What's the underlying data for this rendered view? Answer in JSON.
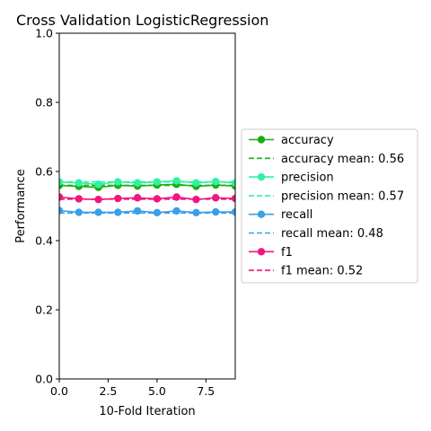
{
  "chart_data": {
    "type": "line",
    "title": "Cross Validation LogisticRegression",
    "xlabel": "10-Fold Iteration",
    "ylabel": "Performance",
    "xlim": [
      0,
      9
    ],
    "ylim": [
      0,
      1
    ],
    "x": [
      0,
      1,
      2,
      3,
      4,
      5,
      6,
      7,
      8,
      9
    ],
    "x_ticks": [
      0.0,
      2.5,
      5.0,
      7.5
    ],
    "x_tick_labels": [
      "0.0",
      "2.5",
      "5.0",
      "7.5"
    ],
    "y_ticks": [
      0.0,
      0.2,
      0.4,
      0.6,
      0.8,
      1.0
    ],
    "y_tick_labels": [
      "0.0",
      "0.2",
      "0.4",
      "0.6",
      "0.8",
      "1.0"
    ],
    "grid": false,
    "legend_position": "right",
    "series": [
      {
        "name": "accuracy",
        "color": "#1aaf10",
        "style": "line-marker",
        "values": [
          0.56,
          0.557,
          0.554,
          0.56,
          0.558,
          0.561,
          0.563,
          0.557,
          0.561,
          0.558
        ]
      },
      {
        "name": "accuracy mean: 0.56",
        "color": "#1aaf10",
        "style": "dashed",
        "mean": 0.56
      },
      {
        "name": "precision",
        "color": "#2ef2a5",
        "style": "line-marker",
        "values": [
          0.57,
          0.567,
          0.563,
          0.57,
          0.567,
          0.57,
          0.573,
          0.567,
          0.571,
          0.567
        ]
      },
      {
        "name": "precision mean: 0.57",
        "color": "#2ef2a5",
        "style": "dashed",
        "mean": 0.57
      },
      {
        "name": "recall",
        "color": "#3a9fe6",
        "style": "line-marker",
        "values": [
          0.487,
          0.482,
          0.482,
          0.482,
          0.486,
          0.481,
          0.486,
          0.481,
          0.483,
          0.483
        ]
      },
      {
        "name": "recall mean: 0.48",
        "color": "#3a9fe6",
        "style": "dashed",
        "mean": 0.48
      },
      {
        "name": "f1",
        "color": "#f0157f",
        "style": "line-marker",
        "values": [
          0.526,
          0.521,
          0.519,
          0.522,
          0.524,
          0.521,
          0.526,
          0.519,
          0.524,
          0.522
        ]
      },
      {
        "name": "f1 mean: 0.52",
        "color": "#f0157f",
        "style": "dashed",
        "mean": 0.52
      }
    ]
  }
}
